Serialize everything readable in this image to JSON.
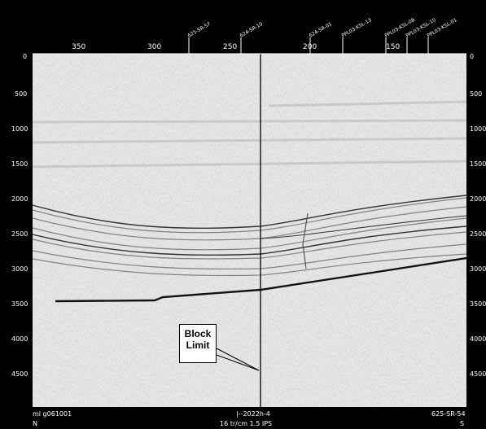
{
  "top_axis_ticks": [
    "350",
    "300",
    "250",
    "200",
    "150"
  ],
  "well_labels": [
    "625-SR-57",
    "624-SR-10",
    "624-SR-01",
    "PPL03-KSL-13",
    "PPL03-KSL-08",
    "PPL03-KSL-10",
    "PPL03-KSL-01"
  ],
  "depth_ticks": [
    "0",
    "500",
    "1000",
    "1500",
    "2000",
    "2500",
    "3000",
    "3500",
    "4000",
    "4500"
  ],
  "callout": {
    "line1": "Block",
    "line2": "Limit"
  },
  "footer": {
    "left_id": "ml g061001",
    "center_id": "|--2022h-4",
    "right_id": "625-SR-54",
    "scale": "16 tr/cm 1.5 IPS",
    "left_dir": "N",
    "right_dir": "S"
  },
  "colors": {
    "frame": "#000000",
    "background": "#e6e6e6",
    "reflector": "#222222"
  }
}
